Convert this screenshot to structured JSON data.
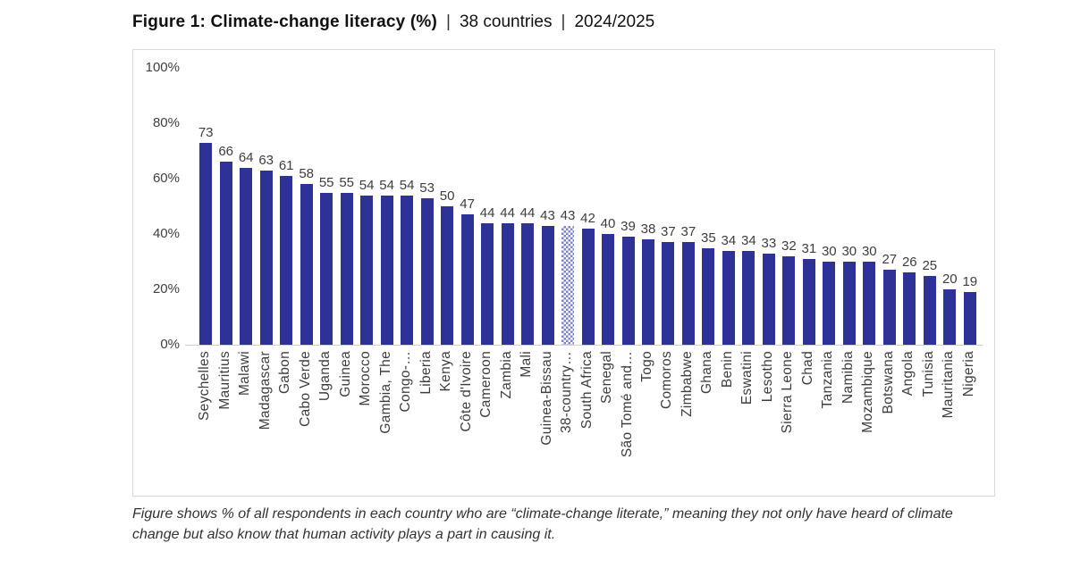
{
  "header": {
    "title_bold": "Figure 1: Climate-change literacy (%)",
    "separator": "|",
    "subtitle_countries": "38 countries",
    "subtitle_period": "2024/2025"
  },
  "chart_data": {
    "type": "bar",
    "title": "Figure 1: Climate-change literacy (%) | 38 countries | 2024/2025",
    "xlabel": "",
    "ylabel": "",
    "ylim": [
      0,
      100
    ],
    "y_ticks": [
      "100%",
      "80%",
      "60%",
      "40%",
      "20%",
      "0%"
    ],
    "grid": false,
    "legend": false,
    "bar_color": "#2e3195",
    "highlight_pattern_color": "#7d81ce",
    "highlight_index": 18,
    "categories": [
      "Seychelles",
      "Mauritius",
      "Malawi",
      "Madagascar",
      "Gabon",
      "Cabo Verde",
      "Uganda",
      "Guinea",
      "Morocco",
      "Gambia, The",
      "Congo-…",
      "Liberia",
      "Kenya",
      "Côte d'Ivoire",
      "Cameroon",
      "Zambia",
      "Mali",
      "Guinea-Bissau",
      "38-country…",
      "South Africa",
      "Senegal",
      "São Tomé and…",
      "Togo",
      "Comoros",
      "Zimbabwe",
      "Ghana",
      "Benin",
      "Eswatini",
      "Lesotho",
      "Sierra Leone",
      "Chad",
      "Tanzania",
      "Namibia",
      "Mozambique",
      "Botswana",
      "Angola",
      "Tunisia",
      "Mauritania",
      "Nigeria"
    ],
    "values": [
      73,
      66,
      64,
      63,
      61,
      58,
      55,
      55,
      54,
      54,
      54,
      53,
      50,
      47,
      44,
      44,
      44,
      43,
      43,
      42,
      40,
      39,
      38,
      37,
      37,
      35,
      34,
      34,
      33,
      32,
      31,
      30,
      30,
      30,
      27,
      26,
      25,
      20,
      19
    ]
  },
  "footnote": "Figure shows % of all respondents in each country who are “climate-change literate,” meaning they not only have heard of climate change but also know that human activity plays a part in causing it."
}
